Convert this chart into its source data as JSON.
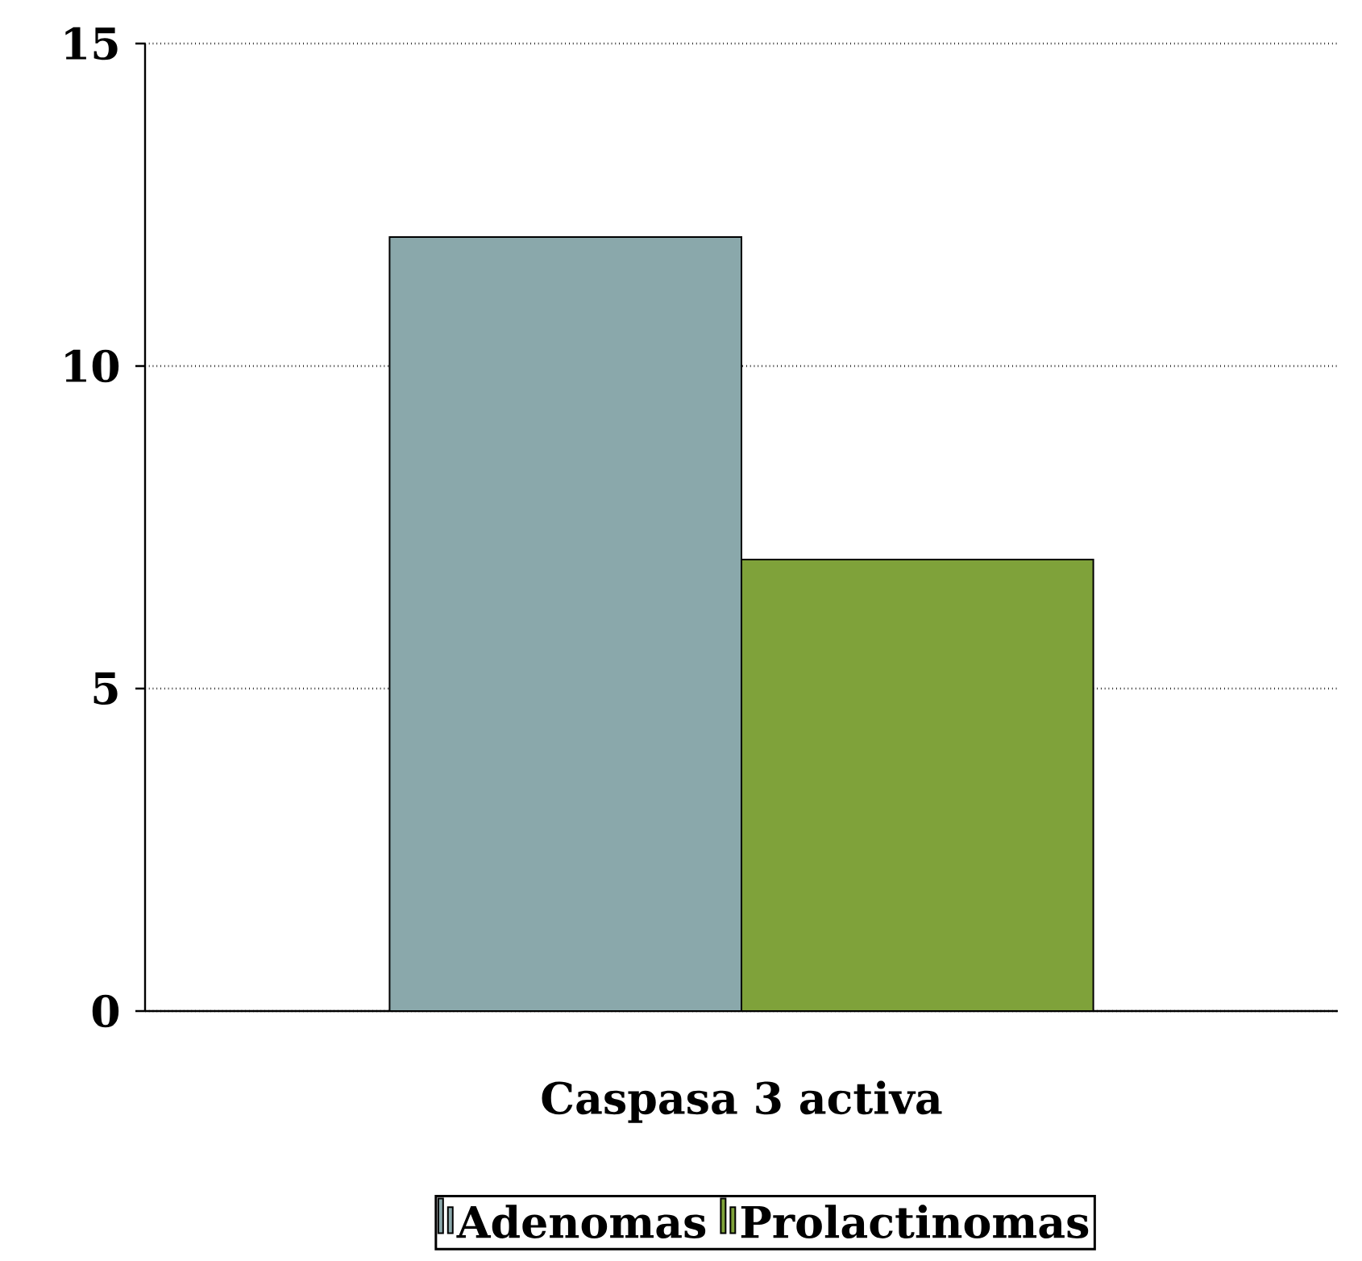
{
  "chart_data": {
    "type": "bar",
    "xlabel": "Caspasa 3 activa",
    "categories": [
      null
    ],
    "series": [
      {
        "name": "Adenomas",
        "color": "#8aa8ab",
        "values": [
          12
        ]
      },
      {
        "name": "Prolactinomas",
        "color": "#7fa23a",
        "values": [
          7
        ]
      }
    ],
    "ylim": [
      0,
      15
    ],
    "yticks": [
      0,
      5,
      10,
      15
    ],
    "grid": "y",
    "legend": "bottom"
  }
}
